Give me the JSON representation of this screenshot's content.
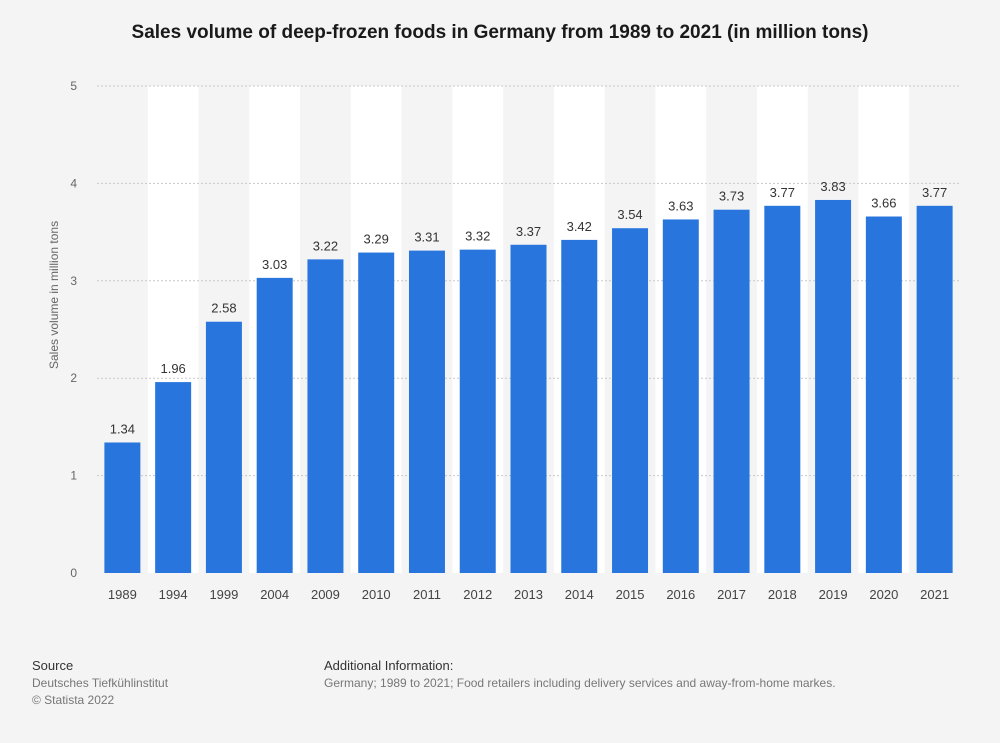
{
  "chart_data": {
    "type": "bar",
    "title": "Sales volume of deep-frozen foods in Germany from 1989 to 2021 (in million tons)",
    "xlabel": "",
    "ylabel": "Sales volume in million tons",
    "ylim": [
      0,
      5
    ],
    "yticks": [
      "0",
      "1",
      "2",
      "3",
      "4",
      "5"
    ],
    "grid": true,
    "categories": [
      "1989",
      "1994",
      "1999",
      "2004",
      "2009",
      "2010",
      "2011",
      "2012",
      "2013",
      "2014",
      "2015",
      "2016",
      "2017",
      "2018",
      "2019",
      "2020",
      "2021"
    ],
    "values": [
      1.34,
      1.96,
      2.58,
      3.03,
      3.22,
      3.29,
      3.31,
      3.32,
      3.37,
      3.42,
      3.54,
      3.63,
      3.73,
      3.77,
      3.83,
      3.66,
      3.77
    ],
    "value_labels": [
      "1.34",
      "1.96",
      "2.58",
      "3.03",
      "3.22",
      "3.29",
      "3.31",
      "3.32",
      "3.37",
      "3.42",
      "3.54",
      "3.63",
      "3.73",
      "3.77",
      "3.83",
      "3.66",
      "3.77"
    ],
    "colors": {
      "bar": "#2876dd",
      "band": "#ffffff",
      "grid": "#c8c8c8"
    }
  },
  "footer": {
    "source_heading": "Source",
    "source_lines": [
      "Deutsches Tiefkühlinstitut",
      "© Statista 2022"
    ],
    "info_heading": "Additional Information:",
    "info_text": "Germany; 1989 to 2021; Food retailers including delivery services and away-from-home markes."
  }
}
